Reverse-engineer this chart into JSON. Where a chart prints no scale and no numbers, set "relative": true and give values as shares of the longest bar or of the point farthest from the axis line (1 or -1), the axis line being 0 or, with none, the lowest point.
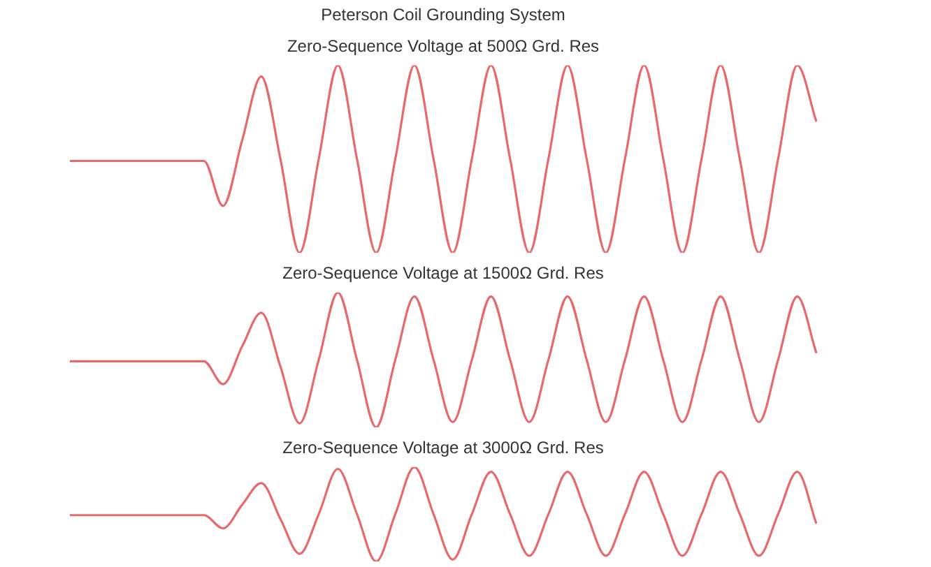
{
  "chart_data": [
    {
      "type": "line",
      "title": "Peterson Coil Grounding System",
      "subtitle": "Zero-Sequence Voltage at 500Ω Grd. Res",
      "relative": true,
      "color": "#e8696b",
      "categories": [
        null,
        null,
        null,
        null,
        null,
        null,
        null,
        null,
        null,
        null,
        null,
        null,
        null,
        null,
        null,
        null,
        null,
        null,
        null,
        null,
        null,
        null,
        null,
        null,
        null,
        null,
        null,
        null,
        null,
        null,
        null,
        null,
        null,
        null,
        null,
        null,
        null,
        null,
        null,
        null
      ],
      "values": [
        0.49,
        0.49,
        0.49,
        0.49,
        0.49,
        0.49,
        0.49,
        0.49,
        0.25,
        0.6,
        0.94,
        0.5,
        0,
        0.5,
        1,
        0.5,
        0,
        0.5,
        1,
        0.5,
        0,
        0.5,
        1,
        0.5,
        0,
        0.5,
        1,
        0.5,
        0,
        0.5,
        1,
        0.5,
        0,
        0.5,
        1,
        0.5,
        0,
        0.5,
        1,
        0.7
      ]
    },
    {
      "type": "line",
      "title": "Zero-Sequence Voltage at 1500Ω Grd. Res",
      "relative": true,
      "color": "#e8696b",
      "categories": [
        null,
        null,
        null,
        null,
        null,
        null,
        null,
        null,
        null,
        null,
        null,
        null,
        null,
        null,
        null,
        null,
        null,
        null,
        null,
        null,
        null,
        null,
        null,
        null,
        null,
        null,
        null,
        null,
        null,
        null,
        null,
        null,
        null,
        null,
        null,
        null,
        null,
        null,
        null,
        null
      ],
      "values": [
        0.49,
        0.49,
        0.49,
        0.49,
        0.49,
        0.49,
        0.49,
        0.49,
        0.32,
        0.6,
        0.85,
        0.45,
        0.03,
        0.5,
        1,
        0.5,
        0,
        0.5,
        0.97,
        0.5,
        0.04,
        0.5,
        0.97,
        0.5,
        0.04,
        0.5,
        0.97,
        0.5,
        0.04,
        0.5,
        0.97,
        0.5,
        0.04,
        0.5,
        0.97,
        0.5,
        0.04,
        0.5,
        0.97,
        0.55
      ]
    },
    {
      "type": "line",
      "title": "Zero-Sequence Voltage at 3000Ω Grd. Res",
      "relative": true,
      "color": "#e8696b",
      "categories": [
        null,
        null,
        null,
        null,
        null,
        null,
        null,
        null,
        null,
        null,
        null,
        null,
        null,
        null,
        null,
        null,
        null,
        null,
        null,
        null,
        null,
        null,
        null,
        null,
        null,
        null,
        null,
        null,
        null,
        null,
        null,
        null,
        null,
        null,
        null,
        null,
        null,
        null,
        null,
        null
      ],
      "values": [
        0.49,
        0.49,
        0.49,
        0.49,
        0.49,
        0.49,
        0.49,
        0.49,
        0.35,
        0.6,
        0.83,
        0.45,
        0.08,
        0.5,
        0.98,
        0.5,
        0,
        0.5,
        1,
        0.5,
        0.02,
        0.5,
        0.95,
        0.5,
        0.06,
        0.5,
        0.95,
        0.5,
        0.06,
        0.5,
        0.95,
        0.5,
        0.06,
        0.5,
        0.95,
        0.5,
        0.06,
        0.5,
        0.95,
        0.4
      ]
    }
  ]
}
